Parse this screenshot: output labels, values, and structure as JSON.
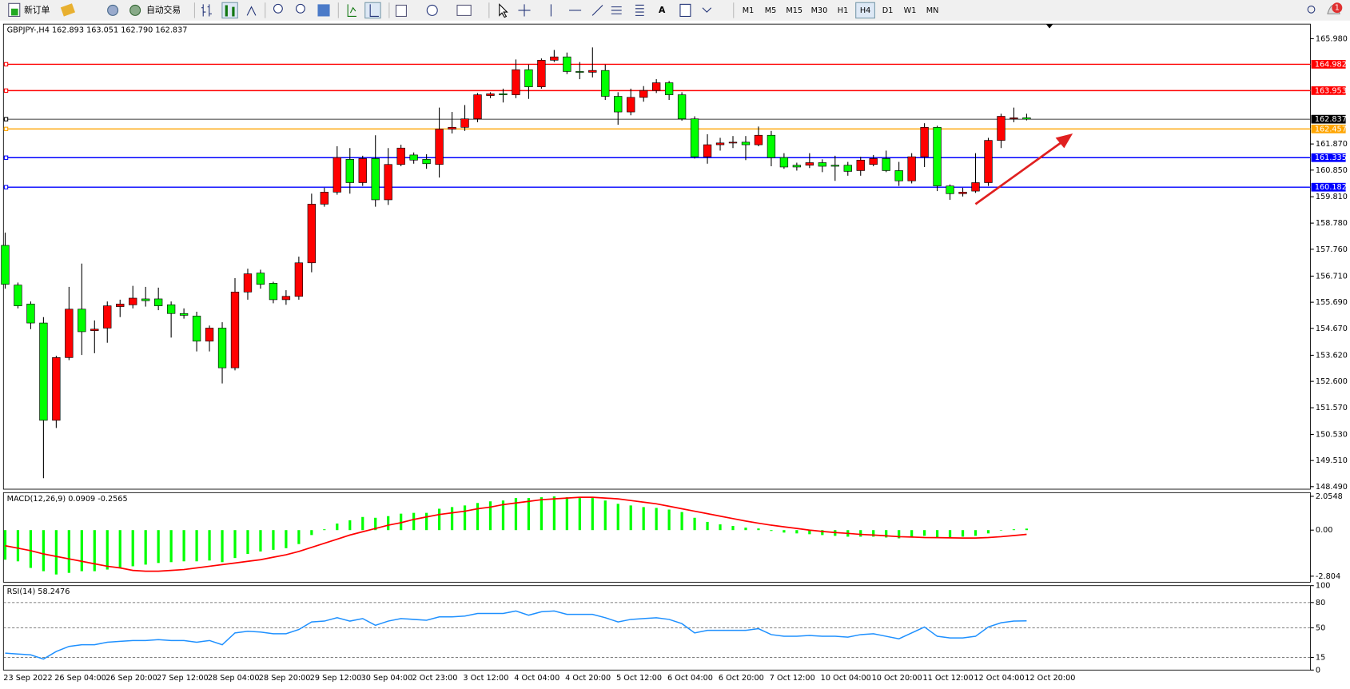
{
  "toolbar": {
    "new_order": "新订单",
    "auto_trading": "自动交易",
    "timeframes": [
      "M1",
      "M5",
      "M15",
      "M30",
      "H1",
      "H4",
      "D1",
      "W1",
      "MN"
    ],
    "active": "H4",
    "notification_count": 1
  },
  "chart_data": [
    {
      "type": "candlestick",
      "title": "GBPJPY-,H4  162.893 163.051 162.790 162.837",
      "categories": [
        "23 Sep 2022",
        null,
        null,
        null,
        "26 Sep 04:00",
        null,
        null,
        null,
        "26 Sep 20:00",
        null,
        null,
        null,
        "27 Sep 12:00",
        null,
        null,
        null,
        "28 Sep 04:00",
        null,
        null,
        null,
        "28 Sep 20:00",
        null,
        null,
        null,
        "29 Sep 12:00",
        null,
        null,
        null,
        "30 Sep 04:00",
        null,
        null,
        null,
        "2 Oct 23:00",
        null,
        null,
        null,
        "3 Oct 12:00",
        null,
        null,
        null,
        "4 Oct 04:00",
        null,
        null,
        null,
        "4 Oct 20:00",
        null,
        null,
        null,
        "5 Oct 12:00",
        null,
        null,
        null,
        "6 Oct 04:00",
        null,
        null,
        null,
        "6 Oct 20:00",
        null,
        null,
        null,
        "7 Oct 12:00",
        null,
        null,
        null,
        "10 Oct 04:00",
        null,
        null,
        null,
        "10 Oct 20:00",
        null,
        null,
        null,
        "11 Oct 12:00",
        null,
        null,
        null,
        "12 Oct 04:00",
        null,
        null,
        null,
        "12 Oct 20:00"
      ],
      "open": [
        157.91,
        156.36,
        155.62,
        154.88,
        151.08,
        153.53,
        155.42,
        154.58,
        154.68,
        155.52,
        155.59,
        155.82,
        155.82,
        155.59,
        155.25,
        155.15,
        154.17,
        154.68,
        153.13,
        156.09,
        156.83,
        156.43,
        155.79,
        155.92,
        157.23,
        159.52,
        159.99,
        161.27,
        160.36,
        161.3,
        159.69,
        161.07,
        161.44,
        161.27,
        161.07,
        162.45,
        162.52,
        162.85,
        163.76,
        163.83,
        163.79,
        164.77,
        164.1,
        165.14,
        165.27,
        164.7,
        164.67,
        164.74,
        163.73,
        163.12,
        163.69,
        163.96,
        164.26,
        163.79,
        162.85,
        161.37,
        161.84,
        161.91,
        161.94,
        161.84,
        162.21,
        161.34,
        161.04,
        161.04,
        161.14,
        161.04,
        161.04,
        160.83,
        161.07,
        161.3,
        160.83,
        160.43,
        161.37,
        162.52,
        160.23,
        159.93,
        160.03,
        160.36,
        162.01,
        162.85,
        162.893
      ],
      "high": [
        158.41,
        156.46,
        155.72,
        155.11,
        153.6,
        156.29,
        157.2,
        154.98,
        155.72,
        155.79,
        156.33,
        156.29,
        156.26,
        155.72,
        155.45,
        155.32,
        154.78,
        154.91,
        156.63,
        157.0,
        156.96,
        156.49,
        156.16,
        157.47,
        159.93,
        160.16,
        161.78,
        161.71,
        161.41,
        162.21,
        161.71,
        161.84,
        161.54,
        161.47,
        163.29,
        163.12,
        163.39,
        163.86,
        163.89,
        164.03,
        165.17,
        164.97,
        165.21,
        165.54,
        165.44,
        165.07,
        165.64,
        164.97,
        163.89,
        164.03,
        164.13,
        164.4,
        164.33,
        163.89,
        162.95,
        162.25,
        162.11,
        162.18,
        162.18,
        162.55,
        162.38,
        161.51,
        161.14,
        161.51,
        161.27,
        161.41,
        161.17,
        161.37,
        161.44,
        161.61,
        161.17,
        161.51,
        162.68,
        162.58,
        160.29,
        160.16,
        161.51,
        162.11,
        163.05,
        163.29,
        163.051
      ],
      "low": [
        156.22,
        155.45,
        154.64,
        148.82,
        150.78,
        153.43,
        153.63,
        153.7,
        154.11,
        155.11,
        155.45,
        155.52,
        155.38,
        154.31,
        155.05,
        153.77,
        153.77,
        152.52,
        153.03,
        155.79,
        156.22,
        155.65,
        155.59,
        155.79,
        156.86,
        159.42,
        159.89,
        159.93,
        160.23,
        159.42,
        159.49,
        161.0,
        161.1,
        160.9,
        160.56,
        162.28,
        162.38,
        162.72,
        163.66,
        163.49,
        163.66,
        163.63,
        164.03,
        165.07,
        164.6,
        164.4,
        164.47,
        163.59,
        162.62,
        162.99,
        163.52,
        163.86,
        163.59,
        162.78,
        161.3,
        161.1,
        161.61,
        161.71,
        161.24,
        161.78,
        161.0,
        160.9,
        160.83,
        160.93,
        160.77,
        160.43,
        160.63,
        160.63,
        161.0,
        160.77,
        160.23,
        160.33,
        160.97,
        160.03,
        159.69,
        159.82,
        159.96,
        160.23,
        161.71,
        162.72,
        162.79
      ],
      "close": [
        156.39,
        155.55,
        154.88,
        151.08,
        153.53,
        155.42,
        154.54,
        154.64,
        155.55,
        155.62,
        155.85,
        155.75,
        155.55,
        155.25,
        155.18,
        154.17,
        154.68,
        153.13,
        156.09,
        156.8,
        156.39,
        155.79,
        155.92,
        157.23,
        159.52,
        159.99,
        161.34,
        160.36,
        161.3,
        159.69,
        161.07,
        161.71,
        161.24,
        161.1,
        162.45,
        162.52,
        162.85,
        163.79,
        163.83,
        163.79,
        164.77,
        164.1,
        165.14,
        165.27,
        164.7,
        164.67,
        164.74,
        163.73,
        163.12,
        163.69,
        163.96,
        164.26,
        163.79,
        162.85,
        161.37,
        161.84,
        161.91,
        161.94,
        161.84,
        162.21,
        161.34,
        160.97,
        160.97,
        161.14,
        161.0,
        161.0,
        160.8,
        161.24,
        161.3,
        160.83,
        160.43,
        161.37,
        162.52,
        160.23,
        159.93,
        159.99,
        160.36,
        162.01,
        162.95,
        162.89,
        162.837
      ],
      "colors": {
        "up": "#ff0000",
        "down": "#00ff00"
      },
      "ylim": [
        148.39,
        166.55
      ],
      "yticks": [
        {
          "value": 165.98,
          "label": "165.980"
        },
        {
          "value": 161.87,
          "label": "161.870"
        },
        {
          "value": 160.85,
          "label": "160.850"
        },
        {
          "value": 159.81,
          "label": "159.810"
        },
        {
          "value": 158.78,
          "label": "158.780"
        },
        {
          "value": 157.76,
          "label": "157.760"
        },
        {
          "value": 156.71,
          "label": "156.710"
        },
        {
          "value": 155.69,
          "label": "155.690"
        },
        {
          "value": 154.67,
          "label": "154.670"
        },
        {
          "value": 153.62,
          "label": "153.620"
        },
        {
          "value": 152.6,
          "label": "152.600"
        },
        {
          "value": 151.57,
          "label": "151.570"
        },
        {
          "value": 150.53,
          "label": "150.530"
        },
        {
          "value": 149.51,
          "label": "149.510"
        },
        {
          "value": 148.49,
          "label": "148.490"
        }
      ],
      "levels": [
        {
          "value": 164.982,
          "color": "#ff0000"
        },
        {
          "value": 163.953,
          "color": "#ff0000"
        },
        {
          "value": 162.837,
          "color": "#000000"
        },
        {
          "value": 162.457,
          "color": "#ffa500"
        },
        {
          "value": 161.335,
          "color": "#0000ff"
        },
        {
          "value": 160.182,
          "color": "#0000ff"
        }
      ]
    },
    {
      "type": "macd",
      "title": "MACD(12,26,9) 0.0909 -0.2565",
      "series": [
        {
          "kind": "bar",
          "color": "#00ff00",
          "values": [
            -1.8,
            -1.9,
            -2.3,
            -2.5,
            -2.7,
            -2.6,
            -2.5,
            -2.5,
            -2.4,
            -2.3,
            -2.2,
            -2.1,
            -2.0,
            -1.95,
            -1.9,
            -1.9,
            -1.85,
            -1.95,
            -1.7,
            -1.45,
            -1.3,
            -1.2,
            -1.1,
            -0.85,
            -0.3,
            0.05,
            0.4,
            0.6,
            0.8,
            0.75,
            0.85,
            1.0,
            1.05,
            1.05,
            1.3,
            1.4,
            1.5,
            1.65,
            1.75,
            1.8,
            1.95,
            1.95,
            2.0,
            2.05,
            2.0,
            1.95,
            1.95,
            1.8,
            1.6,
            1.5,
            1.4,
            1.35,
            1.25,
            1.1,
            0.75,
            0.5,
            0.35,
            0.25,
            0.15,
            0.1,
            -0.05,
            -0.15,
            -0.2,
            -0.25,
            -0.3,
            -0.35,
            -0.4,
            -0.4,
            -0.4,
            -0.45,
            -0.5,
            -0.45,
            -0.35,
            -0.45,
            -0.45,
            -0.4,
            -0.35,
            -0.2,
            0.0,
            0.05,
            0.0909
          ]
        },
        {
          "kind": "line",
          "color": "#ff0000",
          "values": [
            -0.95,
            -1.1,
            -1.25,
            -1.45,
            -1.6,
            -1.75,
            -1.9,
            -2.05,
            -2.2,
            -2.3,
            -2.45,
            -2.5,
            -2.5,
            -2.45,
            -2.4,
            -2.3,
            -2.2,
            -2.1,
            -2.0,
            -1.9,
            -1.8,
            -1.65,
            -1.5,
            -1.3,
            -1.05,
            -0.8,
            -0.55,
            -0.3,
            -0.1,
            0.1,
            0.3,
            0.45,
            0.65,
            0.8,
            0.95,
            1.05,
            1.15,
            1.3,
            1.4,
            1.55,
            1.65,
            1.75,
            1.85,
            1.9,
            1.95,
            2.0,
            2.0,
            1.95,
            1.9,
            1.8,
            1.7,
            1.6,
            1.45,
            1.3,
            1.15,
            1.0,
            0.85,
            0.7,
            0.55,
            0.42,
            0.3,
            0.2,
            0.1,
            0.0,
            -0.08,
            -0.15,
            -0.2,
            -0.26,
            -0.3,
            -0.35,
            -0.4,
            -0.42,
            -0.45,
            -0.46,
            -0.47,
            -0.48,
            -0.48,
            -0.45,
            -0.4,
            -0.33,
            -0.2565
          ]
        }
      ],
      "ylim": [
        -3.17,
        2.28
      ],
      "yticks": [
        2.0548,
        {
          "value": 0,
          "label": "0.00"
        },
        -2.804
      ]
    },
    {
      "type": "line",
      "title": "RSI(14) 58.2476",
      "color": "#1e90ff",
      "values": [
        20,
        19,
        18,
        13,
        22,
        28,
        30,
        30,
        33,
        34,
        35,
        35,
        36,
        35,
        35,
        33,
        35,
        30,
        44,
        46,
        45,
        43,
        43,
        48,
        57,
        58,
        62,
        58,
        61,
        53,
        58,
        61,
        60,
        59,
        63,
        63,
        64,
        67,
        67,
        67,
        70,
        65,
        69,
        70,
        66,
        66,
        66,
        62,
        57,
        60,
        61,
        62,
        60,
        55,
        44,
        47,
        47,
        47,
        47,
        49,
        42,
        40,
        40,
        41,
        40,
        40,
        39,
        42,
        43,
        40,
        37,
        44,
        51,
        40,
        38,
        38,
        40,
        51,
        56,
        58,
        58.2476
      ],
      "ylim": [
        0,
        100
      ],
      "yticks": [
        100,
        80,
        50,
        15,
        0
      ],
      "levels": [
        80,
        50,
        15
      ]
    }
  ]
}
